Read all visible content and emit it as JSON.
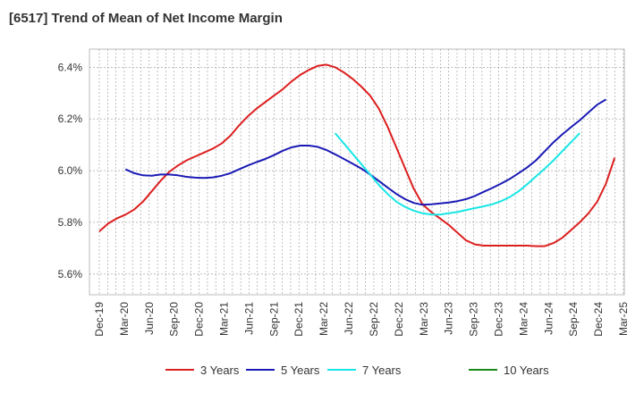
{
  "chart_data": {
    "type": "line",
    "title": "[6517]  Trend of Mean of Net Income Margin",
    "xlabel": "",
    "ylabel": "",
    "x_ticks": [
      "Dec-19",
      "Mar-20",
      "Jun-20",
      "Sep-20",
      "Dec-20",
      "Mar-21",
      "Jun-21",
      "Sep-21",
      "Dec-21",
      "Mar-22",
      "Jun-22",
      "Sep-22",
      "Dec-22",
      "Mar-23",
      "Jun-23",
      "Sep-23",
      "Dec-23",
      "Mar-24",
      "Jun-24",
      "Sep-24",
      "Dec-24",
      "Mar-25"
    ],
    "y_ticks": [
      "5.6%",
      "5.8%",
      "6.0%",
      "6.2%",
      "6.4%"
    ],
    "y_tick_values": [
      5.6,
      5.8,
      6.0,
      6.2,
      6.4
    ],
    "ylim": [
      5.52,
      6.47
    ],
    "grid": true,
    "legend_position": "bottom",
    "series": [
      {
        "name": "3 Years",
        "color": "#dd1f1f",
        "start_index": 0,
        "values": [
          5.765,
          5.795,
          5.815,
          5.83,
          5.85,
          5.88,
          5.92,
          5.96,
          5.995,
          6.02,
          6.04,
          6.055,
          6.07,
          6.085,
          6.105,
          6.135,
          6.175,
          6.21,
          6.24,
          6.265,
          6.29,
          6.315,
          6.345,
          6.37,
          6.39,
          6.405,
          6.41,
          6.4,
          6.38,
          6.355,
          6.325,
          6.29,
          6.24,
          6.17,
          6.09,
          6.01,
          5.93,
          5.87,
          5.84,
          5.815,
          5.79,
          5.76,
          5.73,
          5.715,
          5.71,
          5.71,
          5.71,
          5.71,
          5.71,
          5.71,
          5.708,
          5.708,
          5.72,
          5.74,
          5.77,
          5.8,
          5.835,
          5.88,
          5.95,
          6.05
        ]
      },
      {
        "name": "5 Years",
        "color": "#1a1ab5",
        "start_index": 3,
        "values": [
          6.005,
          5.99,
          5.982,
          5.98,
          5.985,
          5.985,
          5.982,
          5.976,
          5.973,
          5.972,
          5.974,
          5.98,
          5.99,
          6.005,
          6.02,
          6.033,
          6.045,
          6.06,
          6.077,
          6.09,
          6.097,
          6.097,
          6.092,
          6.08,
          6.063,
          6.045,
          6.027,
          6.008,
          5.985,
          5.96,
          5.935,
          5.91,
          5.89,
          5.875,
          5.868,
          5.87,
          5.873,
          5.877,
          5.882,
          5.89,
          5.902,
          5.918,
          5.933,
          5.95,
          5.968,
          5.99,
          6.013,
          6.04,
          6.075,
          6.11,
          6.14,
          6.168,
          6.195,
          6.225,
          6.255,
          6.275
        ]
      },
      {
        "name": "7 Years",
        "color": "#19e6e6",
        "start_index": 27,
        "values": [
          6.145,
          6.105,
          6.065,
          6.025,
          5.985,
          5.945,
          5.91,
          5.88,
          5.86,
          5.845,
          5.835,
          5.83,
          5.83,
          5.835,
          5.84,
          5.848,
          5.855,
          5.862,
          5.87,
          5.882,
          5.898,
          5.92,
          5.948,
          5.978,
          6.008,
          6.04,
          6.075,
          6.11,
          6.145
        ]
      },
      {
        "name": "10 Years",
        "color": "#1a8a1a",
        "start_index": 0,
        "values": []
      }
    ]
  }
}
